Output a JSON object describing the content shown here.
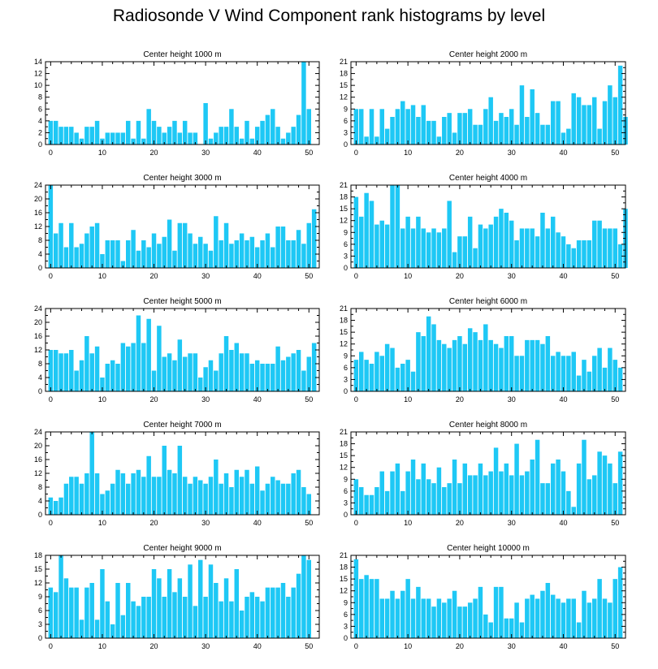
{
  "figure": {
    "title": "Radiosonde V Wind Component rank histograms by level"
  },
  "colors": {
    "bar": "#1ec8f5",
    "axis": "#000000",
    "background": "#ffffff"
  },
  "chart_data": [
    {
      "type": "bar",
      "title": "Center height 1000 m",
      "xlim": [
        -1,
        52
      ],
      "ylim": [
        0,
        14
      ],
      "yticks": [
        0,
        2,
        4,
        6,
        8,
        10,
        12,
        14
      ],
      "xticks": [
        0,
        10,
        20,
        30,
        40,
        50
      ],
      "values": [
        4,
        4,
        3,
        3,
        3,
        2,
        1,
        3,
        3,
        4,
        1,
        2,
        2,
        2,
        2,
        4,
        1,
        4,
        1,
        6,
        4,
        3,
        2,
        3,
        4,
        2,
        4,
        2,
        2,
        0,
        7,
        1,
        2,
        3,
        3,
        6,
        3,
        1,
        4,
        1,
        3,
        4,
        5,
        6,
        3,
        1,
        2,
        3,
        5,
        14,
        6,
        0
      ]
    },
    {
      "type": "bar",
      "title": "Center height 2000 m",
      "xlim": [
        -1,
        52
      ],
      "ylim": [
        0,
        21
      ],
      "yticks": [
        0,
        3,
        6,
        9,
        12,
        15,
        18,
        21
      ],
      "xticks": [
        0,
        10,
        20,
        30,
        40,
        50
      ],
      "values": [
        9,
        9,
        2,
        9,
        2,
        9,
        4,
        7,
        9,
        11,
        9,
        10,
        7,
        10,
        6,
        6,
        2,
        7,
        8,
        3,
        8,
        8,
        9,
        5,
        5,
        9,
        12,
        6,
        8,
        7,
        9,
        5,
        15,
        7,
        14,
        8,
        5,
        5,
        11,
        11,
        3,
        4,
        13,
        12,
        10,
        10,
        12,
        4,
        11,
        15,
        12,
        20,
        7
      ]
    },
    {
      "type": "bar",
      "title": "Center height 3000 m",
      "xlim": [
        -1,
        52
      ],
      "ylim": [
        0,
        24
      ],
      "yticks": [
        0,
        4,
        8,
        12,
        16,
        20,
        24
      ],
      "xticks": [
        0,
        10,
        20,
        30,
        40,
        50
      ],
      "values": [
        24,
        10,
        13,
        6,
        13,
        6,
        7,
        10,
        12,
        13,
        4,
        8,
        8,
        8,
        2,
        8,
        11,
        5,
        8,
        6,
        10,
        7,
        9,
        14,
        5,
        13,
        13,
        10,
        7,
        9,
        7,
        5,
        15,
        8,
        13,
        7,
        8,
        10,
        8,
        9,
        6,
        8,
        10,
        6,
        12,
        12,
        8,
        8,
        11,
        7,
        13,
        17
      ]
    },
    {
      "type": "bar",
      "title": "Center height 4000 m",
      "xlim": [
        -1,
        52
      ],
      "ylim": [
        0,
        21
      ],
      "yticks": [
        0,
        3,
        6,
        9,
        12,
        15,
        18,
        21
      ],
      "xticks": [
        0,
        10,
        20,
        30,
        40,
        50
      ],
      "values": [
        18,
        13,
        19,
        17,
        11,
        12,
        11,
        21,
        21,
        10,
        13,
        10,
        13,
        10,
        9,
        10,
        9,
        10,
        17,
        4,
        8,
        8,
        13,
        5,
        11,
        10,
        11,
        13,
        15,
        14,
        12,
        7,
        10,
        10,
        10,
        8,
        14,
        10,
        13,
        9,
        8,
        6,
        5,
        7,
        7,
        7,
        12,
        12,
        10,
        10,
        10,
        6,
        15
      ]
    },
    {
      "type": "bar",
      "title": "Center height 5000 m",
      "xlim": [
        -1,
        52
      ],
      "ylim": [
        0,
        24
      ],
      "yticks": [
        0,
        4,
        8,
        12,
        16,
        20,
        24
      ],
      "xticks": [
        0,
        10,
        20,
        30,
        40,
        50
      ],
      "values": [
        12,
        12,
        11,
        11,
        12,
        6,
        9,
        16,
        11,
        13,
        4,
        8,
        9,
        8,
        14,
        13,
        14,
        22,
        14,
        21,
        6,
        19,
        10,
        11,
        9,
        15,
        10,
        11,
        11,
        4,
        7,
        9,
        6,
        11,
        16,
        12,
        14,
        11,
        11,
        8,
        9,
        8,
        8,
        8,
        13,
        9,
        10,
        11,
        12,
        6,
        10,
        14
      ]
    },
    {
      "type": "bar",
      "title": "Center height 6000 m",
      "xlim": [
        -1,
        52
      ],
      "ylim": [
        0,
        21
      ],
      "yticks": [
        0,
        3,
        6,
        9,
        12,
        15,
        18,
        21
      ],
      "xticks": [
        0,
        10,
        20,
        30,
        40,
        50
      ],
      "values": [
        8,
        10,
        8,
        7,
        10,
        9,
        12,
        11,
        6,
        7,
        8,
        5,
        15,
        14,
        19,
        17,
        13,
        12,
        11,
        13,
        14,
        12,
        16,
        15,
        13,
        17,
        13,
        12,
        11,
        14,
        14,
        9,
        9,
        13,
        13,
        13,
        12,
        14,
        9,
        10,
        9,
        9,
        10,
        4,
        8,
        5,
        9,
        11,
        6,
        11,
        8,
        6
      ]
    },
    {
      "type": "bar",
      "title": "Center height 7000 m",
      "xlim": [
        -1,
        52
      ],
      "ylim": [
        0,
        24
      ],
      "yticks": [
        0,
        4,
        8,
        12,
        16,
        20,
        24
      ],
      "xticks": [
        0,
        10,
        20,
        30,
        40,
        50
      ],
      "values": [
        5,
        4,
        5,
        9,
        11,
        11,
        9,
        12,
        24,
        12,
        6,
        7,
        9,
        13,
        12,
        9,
        12,
        13,
        11,
        17,
        11,
        11,
        20,
        13,
        12,
        20,
        11,
        9,
        11,
        10,
        9,
        11,
        16,
        9,
        12,
        8,
        13,
        11,
        13,
        9,
        14,
        7,
        9,
        11,
        10,
        9,
        9,
        12,
        13,
        8,
        6
      ]
    },
    {
      "type": "bar",
      "title": "Center height 8000 m",
      "xlim": [
        -1,
        52
      ],
      "ylim": [
        0,
        21
      ],
      "yticks": [
        0,
        3,
        6,
        9,
        12,
        15,
        18,
        21
      ],
      "xticks": [
        0,
        10,
        20,
        30,
        40,
        50
      ],
      "values": [
        9,
        7,
        5,
        5,
        7,
        11,
        6,
        11,
        13,
        6,
        11,
        14,
        9,
        13,
        9,
        8,
        12,
        7,
        8,
        14,
        8,
        13,
        10,
        10,
        13,
        10,
        11,
        17,
        11,
        13,
        10,
        18,
        10,
        11,
        14,
        19,
        8,
        8,
        13,
        14,
        11,
        6,
        2,
        13,
        19,
        9,
        10,
        16,
        15,
        13,
        8,
        16
      ]
    },
    {
      "type": "bar",
      "title": "Center height 9000 m",
      "xlim": [
        -1,
        52
      ],
      "ylim": [
        0,
        18
      ],
      "yticks": [
        0,
        3,
        6,
        9,
        12,
        15,
        18
      ],
      "xticks": [
        0,
        10,
        20,
        30,
        40,
        50
      ],
      "values": [
        11,
        10,
        18,
        13,
        11,
        11,
        4,
        11,
        12,
        4,
        15,
        8,
        3,
        12,
        5,
        12,
        8,
        7,
        9,
        9,
        15,
        13,
        9,
        15,
        10,
        13,
        9,
        16,
        7,
        17,
        9,
        16,
        12,
        8,
        13,
        8,
        15,
        6,
        9,
        10,
        9,
        8,
        11,
        11,
        11,
        12,
        9,
        11,
        14,
        18,
        17
      ]
    },
    {
      "type": "bar",
      "title": "Center height 10000 m",
      "xlim": [
        -1,
        52
      ],
      "ylim": [
        0,
        21
      ],
      "yticks": [
        0,
        3,
        6,
        9,
        12,
        15,
        18,
        21
      ],
      "xticks": [
        0,
        10,
        20,
        30,
        40,
        50
      ],
      "values": [
        20,
        15,
        16,
        15,
        15,
        10,
        10,
        12,
        10,
        12,
        15,
        10,
        13,
        10,
        10,
        8,
        10,
        9,
        10,
        12,
        8,
        8,
        9,
        10,
        13,
        6,
        4,
        13,
        13,
        5,
        5,
        9,
        4,
        10,
        11,
        10,
        12,
        14,
        11,
        10,
        9,
        10,
        10,
        4,
        12,
        9,
        10,
        15,
        10,
        9,
        15,
        18
      ]
    }
  ]
}
